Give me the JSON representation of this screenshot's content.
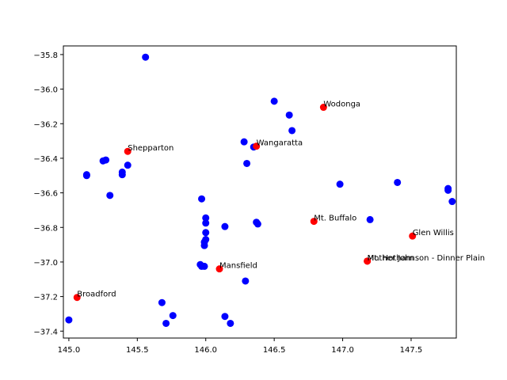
{
  "chart_data": {
    "type": "scatter",
    "title": "",
    "xlabel": "",
    "ylabel": "",
    "xlim": [
      144.96,
      147.83
    ],
    "ylim": [
      -37.44,
      -35.75
    ],
    "xticks": [
      145.0,
      145.5,
      146.0,
      146.5,
      147.0,
      147.5
    ],
    "yticks": [
      -37.4,
      -37.2,
      -37.0,
      -36.8,
      -36.6,
      -36.4,
      -36.2,
      -36.0,
      -35.8
    ],
    "xtick_labels": [
      "145.0",
      "145.5",
      "146.0",
      "146.5",
      "147.0",
      "147.5"
    ],
    "ytick_labels": [
      "−37.4",
      "−37.2",
      "−37.0",
      "−36.8",
      "−36.6",
      "−36.4",
      "−36.2",
      "−36.0",
      "−35.8"
    ],
    "grid": false,
    "series": [
      {
        "color": "#0000ff",
        "points": [
          [
            145.56,
            -35.815
          ],
          [
            146.5,
            -36.07
          ],
          [
            146.61,
            -36.15
          ],
          [
            146.63,
            -36.24
          ],
          [
            146.28,
            -36.305
          ],
          [
            146.35,
            -36.335
          ],
          [
            146.3,
            -36.43
          ],
          [
            145.27,
            -36.41
          ],
          [
            145.25,
            -36.415
          ],
          [
            145.43,
            -36.44
          ],
          [
            145.39,
            -36.48
          ],
          [
            145.39,
            -36.495
          ],
          [
            145.13,
            -36.495
          ],
          [
            145.13,
            -36.5
          ],
          [
            145.3,
            -36.615
          ],
          [
            146.98,
            -36.55
          ],
          [
            147.4,
            -36.54
          ],
          [
            147.77,
            -36.575
          ],
          [
            147.77,
            -36.585
          ],
          [
            147.8,
            -36.65
          ],
          [
            145.97,
            -36.635
          ],
          [
            146.0,
            -36.745
          ],
          [
            146.0,
            -36.775
          ],
          [
            146.37,
            -36.77
          ],
          [
            146.38,
            -36.78
          ],
          [
            146.14,
            -36.795
          ],
          [
            147.2,
            -36.755
          ],
          [
            146.0,
            -36.83
          ],
          [
            146.0,
            -36.87
          ],
          [
            145.99,
            -36.885
          ],
          [
            145.99,
            -36.905
          ],
          [
            145.96,
            -37.015
          ],
          [
            145.97,
            -37.025
          ],
          [
            145.99,
            -37.025
          ],
          [
            146.29,
            -37.11
          ],
          [
            145.68,
            -37.235
          ],
          [
            145.76,
            -37.31
          ],
          [
            145.71,
            -37.355
          ],
          [
            146.14,
            -37.315
          ],
          [
            146.18,
            -37.355
          ],
          [
            145.0,
            -37.335
          ]
        ]
      },
      {
        "color": "#ff0000",
        "points": [
          {
            "x": 146.86,
            "y": -36.105,
            "label": "Wodonga"
          },
          {
            "x": 146.37,
            "y": -36.33,
            "label": "Wangaratta"
          },
          {
            "x": 145.43,
            "y": -36.36,
            "label": "Shepparton"
          },
          {
            "x": 146.79,
            "y": -36.765,
            "label": "Mt. Buffalo"
          },
          {
            "x": 147.51,
            "y": -36.85,
            "label": "Glen Willis"
          },
          {
            "x": 147.18,
            "y": -36.995,
            "label": "Mt. Hotham"
          },
          {
            "x": 147.18,
            "y": -36.995,
            "label": "Mother Johnson - Dinner Plain"
          },
          {
            "x": 146.1,
            "y": -37.04,
            "label": "Mansfield"
          },
          {
            "x": 145.06,
            "y": -37.205,
            "label": "Broadford"
          }
        ]
      }
    ]
  }
}
